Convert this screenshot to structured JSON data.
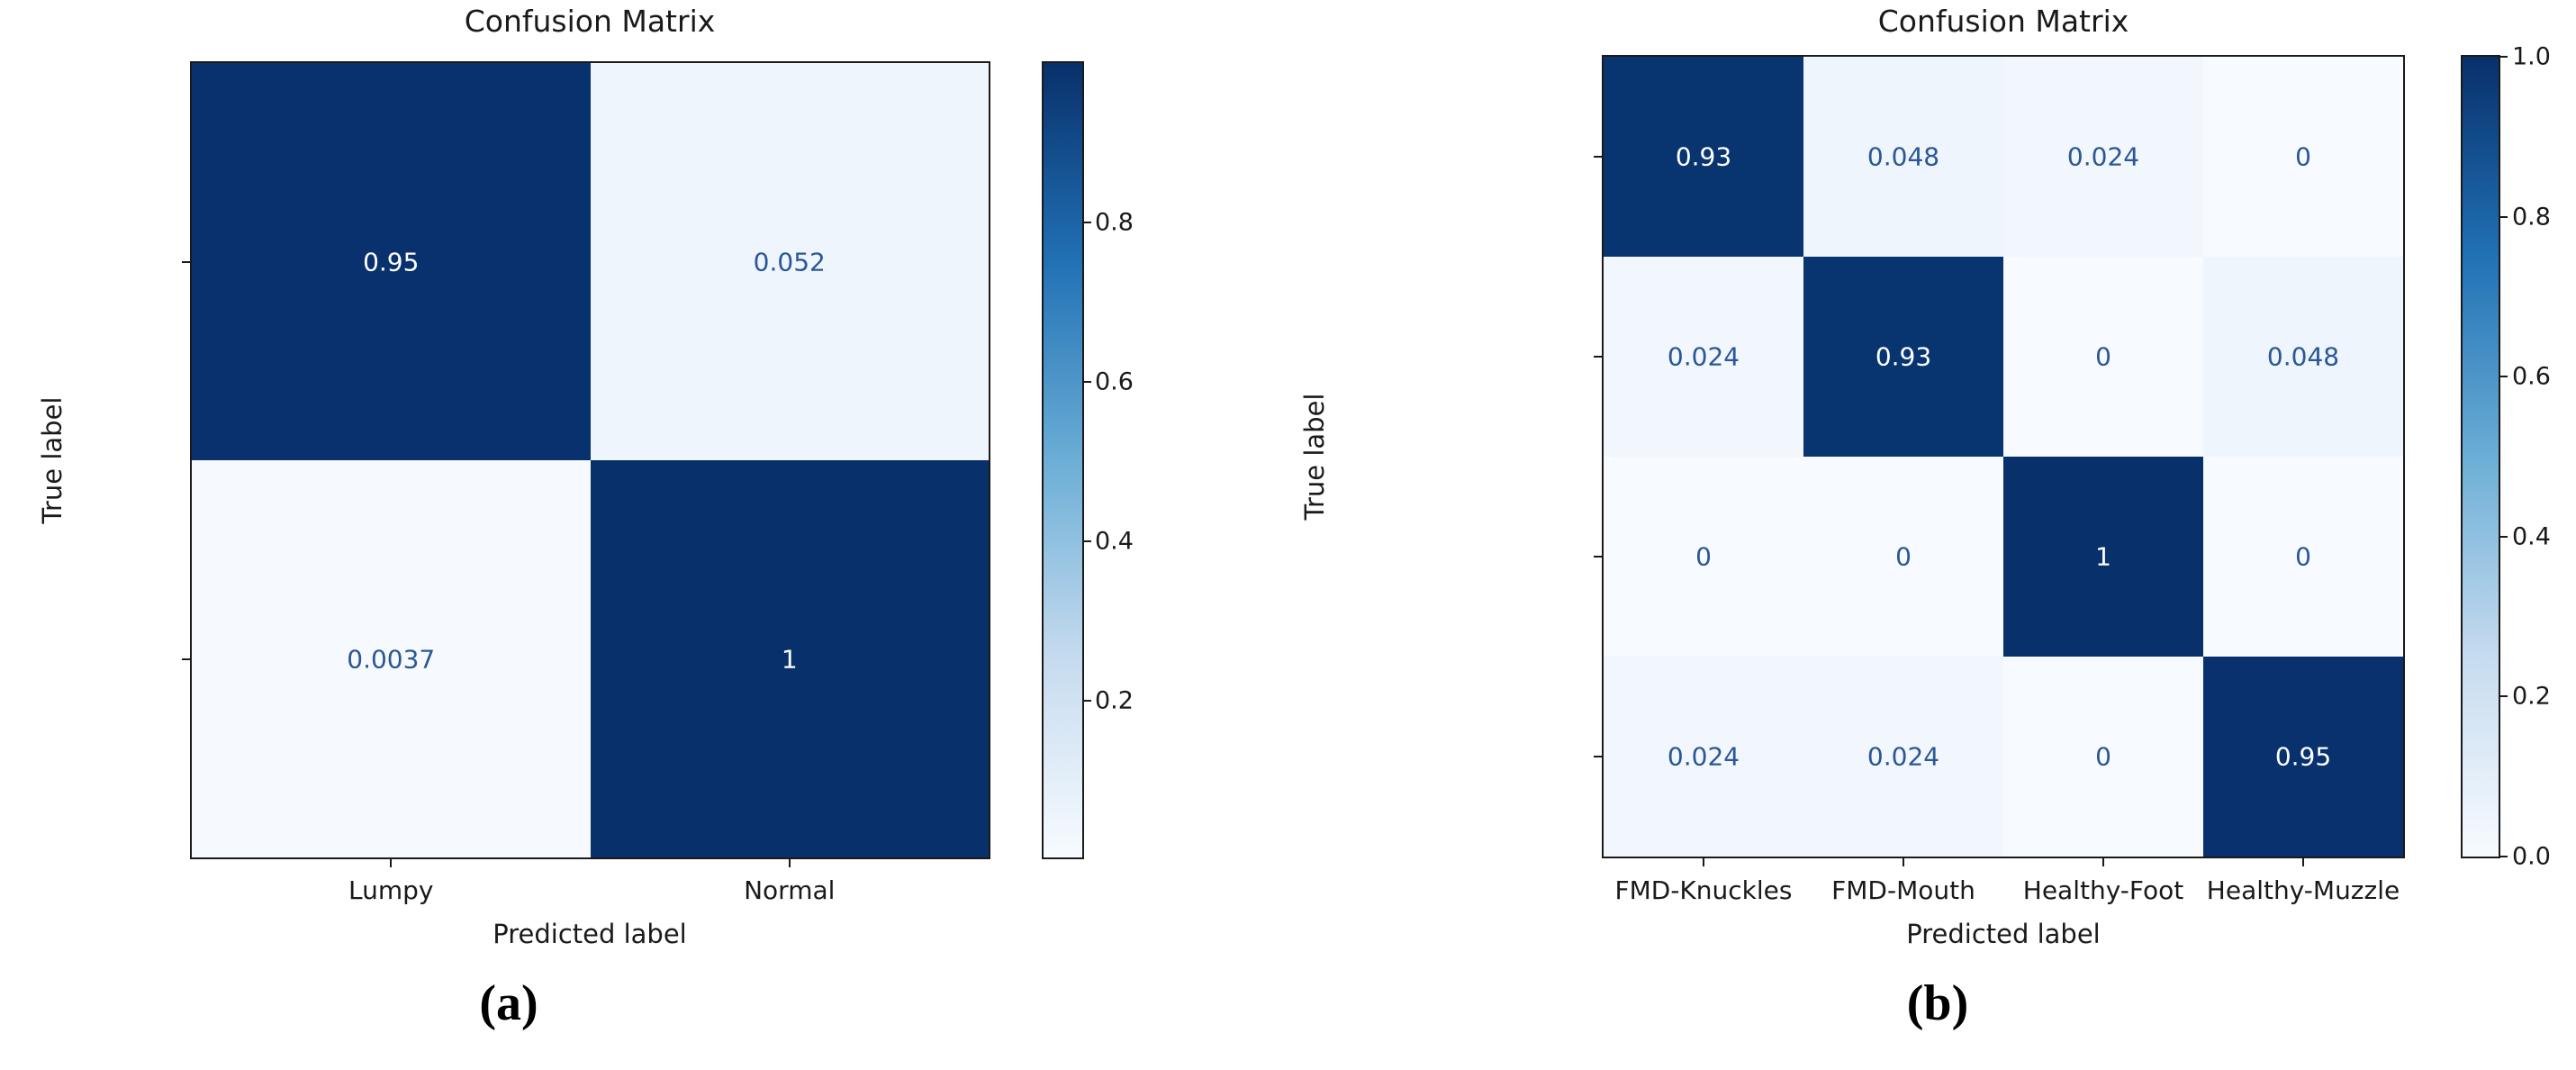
{
  "page": {
    "background": "#ffffff"
  },
  "chart_data": [
    {
      "type": "heatmap",
      "panel": "a",
      "title": "Confusion Matrix",
      "xlabel": "Predicted label",
      "ylabel": "True label",
      "caption": "(a)",
      "categories": [
        "Lumpy",
        "Normal"
      ],
      "matrix": [
        [
          0.95,
          0.052
        ],
        [
          0.0037,
          1
        ]
      ],
      "cell_labels": [
        [
          "0.95",
          "0.052"
        ],
        [
          "0.0037",
          "1"
        ]
      ],
      "colormap": "Blues",
      "vmin": 0.0037,
      "vmax": 1.0,
      "colorbar_ticks": [
        0.8,
        0.6,
        0.4,
        0.2
      ],
      "colorbar_tick_labels": [
        "0.8",
        "0.6",
        "0.4",
        "0.2"
      ],
      "legend_position": "right-colorbar",
      "grid": false
    },
    {
      "type": "heatmap",
      "panel": "b",
      "title": "Confusion Matrix",
      "xlabel": "Predicted label",
      "ylabel": "True label",
      "caption": "(b)",
      "categories": [
        "FMD-Knuckles",
        "FMD-Mouth",
        "Healthy-Foot",
        "Healthy-Muzzle"
      ],
      "matrix": [
        [
          0.93,
          0.048,
          0.024,
          0
        ],
        [
          0.024,
          0.93,
          0,
          0.048
        ],
        [
          0,
          0,
          1,
          0
        ],
        [
          0.024,
          0.024,
          0,
          0.95
        ]
      ],
      "cell_labels": [
        [
          "0.93",
          "0.048",
          "0.024",
          "0"
        ],
        [
          "0.024",
          "0.93",
          "0",
          "0.048"
        ],
        [
          "0",
          "0",
          "1",
          "0"
        ],
        [
          "0.024",
          "0.024",
          "0",
          "0.95"
        ]
      ],
      "colormap": "Blues",
      "vmin": 0.0,
      "vmax": 1.0,
      "colorbar_ticks": [
        1.0,
        0.8,
        0.6,
        0.4,
        0.2,
        0.0
      ],
      "colorbar_tick_labels": [
        "1.0",
        "0.8",
        "0.6",
        "0.4",
        "0.2",
        "0.0"
      ],
      "legend_position": "right-colorbar",
      "grid": false
    }
  ],
  "colors": {
    "cmap_stops": [
      "#08306b",
      "#2171b5",
      "#6baed6",
      "#c6dbef",
      "#f7fbff"
    ],
    "value_colors": {
      "1": "#08306b",
      "0.95": "#08316d",
      "0.93": "#083470",
      "0.052": "#eef5fc",
      "0.048": "#eef5fc",
      "0.024": "#f2f7fd",
      "0.0037": "#f6fafe",
      "0": "#f7fbff"
    },
    "annotation_on_dark": "#ffffff",
    "annotation_on_light": "#2a5796",
    "axis_text": "#1a1a1a",
    "spine": "#1a1a1a"
  }
}
